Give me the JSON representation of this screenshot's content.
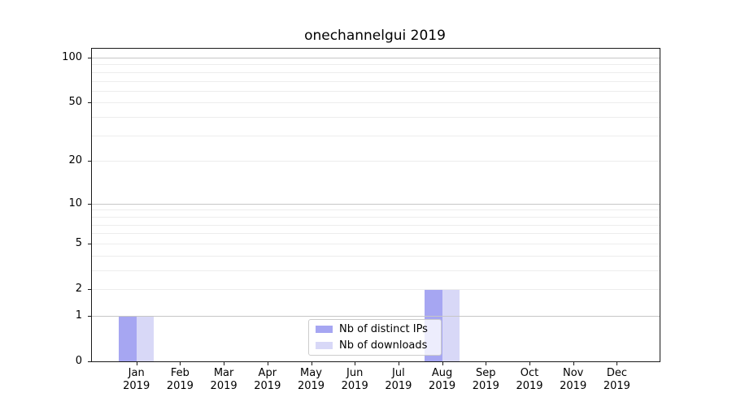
{
  "title": "onechannelgui 2019",
  "chart_data": {
    "type": "bar",
    "title": "onechannelgui 2019",
    "categories": [
      "Jan",
      "Feb",
      "Mar",
      "Apr",
      "May",
      "Jun",
      "Jul",
      "Aug",
      "Sep",
      "Oct",
      "Nov",
      "Dec"
    ],
    "category_year": "2019",
    "series": [
      {
        "name": "Nb of distinct IPs",
        "color": "#a6a6f2",
        "values": [
          1,
          0,
          0,
          0,
          0,
          0,
          0,
          2,
          0,
          0,
          0,
          0
        ]
      },
      {
        "name": "Nb of downloads",
        "color": "#d8d8f7",
        "values": [
          1,
          0,
          0,
          0,
          0,
          0,
          0,
          2,
          0,
          0,
          0,
          0
        ]
      }
    ],
    "y_axis": {
      "scale": "log1p",
      "tick_values": [
        0,
        1,
        2,
        5,
        10,
        20,
        50,
        100
      ],
      "tick_labels": [
        "0",
        "1",
        "2",
        "5",
        "10",
        "20",
        "50",
        "100"
      ],
      "grid_major_values": [
        1,
        10,
        100
      ],
      "grid_minor_values": [
        2,
        3,
        4,
        5,
        6,
        7,
        8,
        9,
        20,
        30,
        40,
        50,
        60,
        70,
        80,
        90
      ],
      "ylim": [
        0,
        117
      ]
    },
    "grid": "horizontal",
    "legend_position": "lower center-right",
    "colors": {
      "grid_major": "#c6c6c6",
      "grid_minor": "#ededed",
      "spine": "#1a1a1a",
      "background": "#ffffff"
    }
  }
}
